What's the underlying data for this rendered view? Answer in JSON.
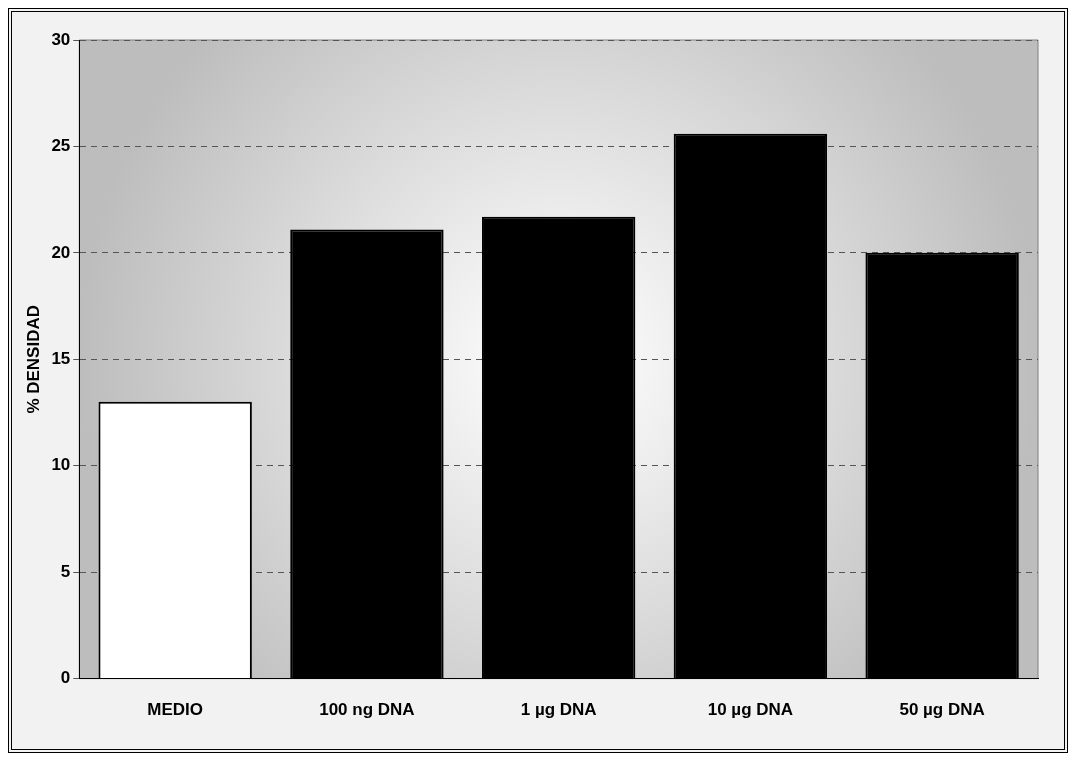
{
  "chart_data": {
    "type": "bar",
    "ylabel": "% DENSIDAD",
    "categories": [
      "MEDIO",
      "100 ng DNA",
      "1 µg DNA",
      "10 µg DNA",
      "50 µg DNA"
    ],
    "values": [
      13,
      21.1,
      21.7,
      25.6,
      20
    ],
    "colors": [
      "#ffffff",
      "#000000",
      "#000000",
      "#000000",
      "#000000"
    ],
    "ylim": [
      0,
      30
    ],
    "yticks": [
      0,
      5,
      10,
      15,
      20,
      25,
      30
    ],
    "grid": "y",
    "legend": false
  }
}
